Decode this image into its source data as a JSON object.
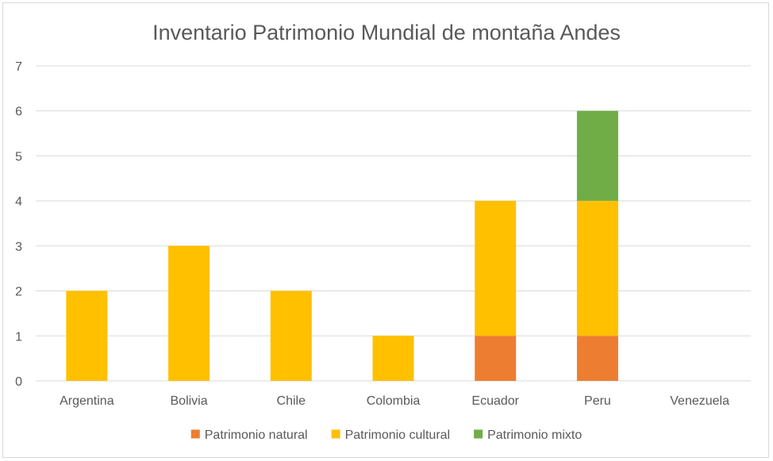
{
  "chart_data": {
    "type": "bar",
    "stacked": true,
    "title": "Inventario Patrimonio Mundial de montaña Andes",
    "categories": [
      "Argentina",
      "Bolivia",
      "Chile",
      "Colombia",
      "Ecuador",
      "Peru",
      "Venezuela"
    ],
    "series": [
      {
        "name": "Patrimonio natural",
        "color": "#ed7d31",
        "values": [
          0,
          0,
          0,
          0,
          1,
          1,
          0
        ]
      },
      {
        "name": "Patrimonio cultural",
        "color": "#ffc000",
        "values": [
          2,
          3,
          2,
          1,
          3,
          3,
          0
        ]
      },
      {
        "name": "Patrimonio mixto",
        "color": "#70ad47",
        "values": [
          0,
          0,
          0,
          0,
          0,
          2,
          0
        ]
      }
    ],
    "ylim": [
      0,
      7
    ],
    "yticks": [
      "0",
      "1",
      "2",
      "3",
      "4",
      "5",
      "6",
      "7"
    ],
    "grid": true,
    "legend_position": "bottom",
    "xlabel": "",
    "ylabel": ""
  }
}
